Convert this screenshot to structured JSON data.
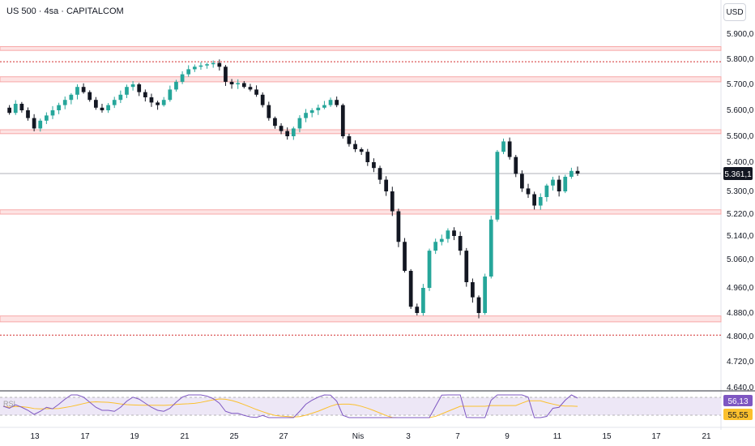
{
  "header": {
    "symbol": "US 500 · 4sa · CAPITALCOM"
  },
  "currency_button": {
    "label": "USD"
  },
  "price_badge": {
    "value": "5.361,1"
  },
  "rsi_badges": {
    "rsi": "56,13",
    "ma": "55,55"
  },
  "rsi_label": "RSI",
  "colors": {
    "up": "#26a69a",
    "down": "#131722",
    "zone_fill": "#fde3e3",
    "zone_stroke": "#f7a8a8",
    "dotted": "#d32f2f",
    "rsi_line": "#7e57c2",
    "rsi_ma": "#fbc02d"
  },
  "chart_data": {
    "type": "candlestick",
    "y_ticks": [
      "5.900,0",
      "5.800,0",
      "5.700,0",
      "5.600,0",
      "5.500,0",
      "5.400,0",
      "5.300,0",
      "5.220,0",
      "5.140,0",
      "5.060,0",
      "4.960,0",
      "4.880,0",
      "4.800,0",
      "4.720,0",
      "4.640,0"
    ],
    "y_tick_values": [
      5900,
      5800,
      5700,
      5600,
      5500,
      5400,
      5300,
      5220,
      5140,
      5060,
      4960,
      4880,
      4800,
      4720,
      4640
    ],
    "x_ticks": [
      "13",
      "17",
      "19",
      "21",
      "25",
      "27",
      "Nis",
      "3",
      "7",
      "9",
      "11",
      "15",
      "17",
      "21"
    ],
    "last_price": 5361.1,
    "zones": [
      [
        5835,
        5850
      ],
      [
        5710,
        5730
      ],
      [
        5510,
        5525
      ],
      [
        5220,
        5235
      ],
      [
        4850,
        4870
      ]
    ],
    "dotted_levels": [
      5790,
      4805
    ],
    "close_path": [
      5610,
      5590,
      5625,
      5600,
      5570,
      5530,
      5560,
      5580,
      5600,
      5620,
      5640,
      5660,
      5690,
      5670,
      5640,
      5610,
      5600,
      5620,
      5640,
      5660,
      5690,
      5700,
      5670,
      5650,
      5630,
      5620,
      5640,
      5680,
      5710,
      5740,
      5760,
      5770,
      5775,
      5780,
      5785,
      5770,
      5710,
      5700,
      5705,
      5690,
      5680,
      5660,
      5620,
      5570,
      5540,
      5520,
      5500,
      5530,
      5570,
      5590,
      5600,
      5610,
      5620,
      5640,
      5620,
      5500,
      5470,
      5450,
      5440,
      5400,
      5380,
      5340,
      5300,
      5230,
      5120,
      5020,
      4900,
      4880,
      4960,
      5090,
      5120,
      5130,
      5160,
      5140,
      5090,
      4980,
      4930,
      4880,
      5000,
      5200,
      5440,
      5480,
      5420,
      5360,
      5310,
      5290,
      5250,
      5280,
      5320,
      5340,
      5300,
      5350,
      5370,
      5361
    ],
    "rsi": {
      "ylim": [
        20,
        80
      ],
      "band": [
        30,
        70
      ],
      "last": 56.13,
      "ma_last": 55.55
    }
  }
}
